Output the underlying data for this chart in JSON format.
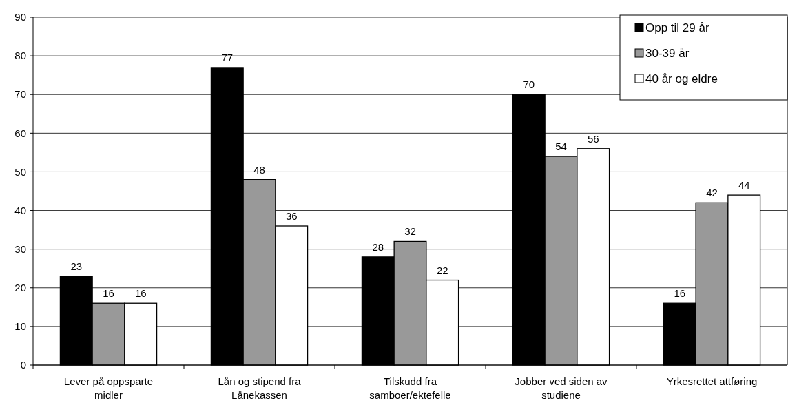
{
  "chart_data": {
    "type": "bar",
    "categories": [
      "Lever på oppsparte midler",
      "Lån og stipend fra Lånekassen",
      "Tilskudd fra samboer/ektefelle",
      "Jobber ved siden av studiene",
      "Yrkesrettet attføring"
    ],
    "series": [
      {
        "name": "Opp til 29 år",
        "color": "#000000",
        "values": [
          23,
          77,
          28,
          70,
          16
        ]
      },
      {
        "name": "30-39 år",
        "color": "#999999",
        "values": [
          16,
          48,
          32,
          54,
          42
        ]
      },
      {
        "name": "40 år og eldre",
        "color": "#ffffff",
        "values": [
          16,
          36,
          22,
          56,
          44
        ]
      }
    ],
    "ylim": [
      0,
      90
    ],
    "yticks": [
      0,
      10,
      20,
      30,
      40,
      50,
      60,
      70,
      80,
      90
    ],
    "grid": "y",
    "legend": "top right",
    "data_labels": true
  }
}
